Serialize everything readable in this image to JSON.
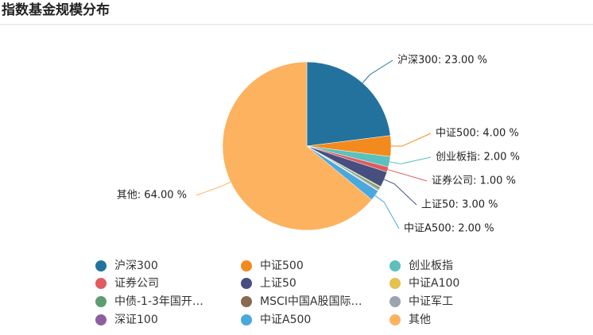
{
  "chart_data": {
    "type": "pie",
    "title": "指数基金规模分布",
    "categories": [
      "沪深300",
      "中证500",
      "创业板指",
      "证券公司",
      "上证50",
      "中证A100",
      "中债-1-3年国开…",
      "MSCI中国A股国际…",
      "中证军工",
      "深证100",
      "中证A500",
      "其他"
    ],
    "values": [
      23,
      4,
      2,
      1,
      3,
      0.2,
      0.4,
      0.2,
      0.1,
      0.1,
      2,
      64
    ],
    "value_labels": [
      "沪深300: 23.00 %",
      "中证500: 4.00 %",
      "创业板指: 2.00 %",
      "证券公司: 1.00 %",
      "上证50: 3.00 %",
      null,
      null,
      null,
      null,
      null,
      "中证A500: 2.00 %",
      "其他: 64.00 %"
    ],
    "colors": [
      "#23729e",
      "#f28a1e",
      "#5cc0bd",
      "#e05c60",
      "#474f80",
      "#e3c250",
      "#5e9d6f",
      "#896950",
      "#9aa5b0",
      "#8e5ea2",
      "#49a8dc",
      "#fdb260"
    ]
  }
}
